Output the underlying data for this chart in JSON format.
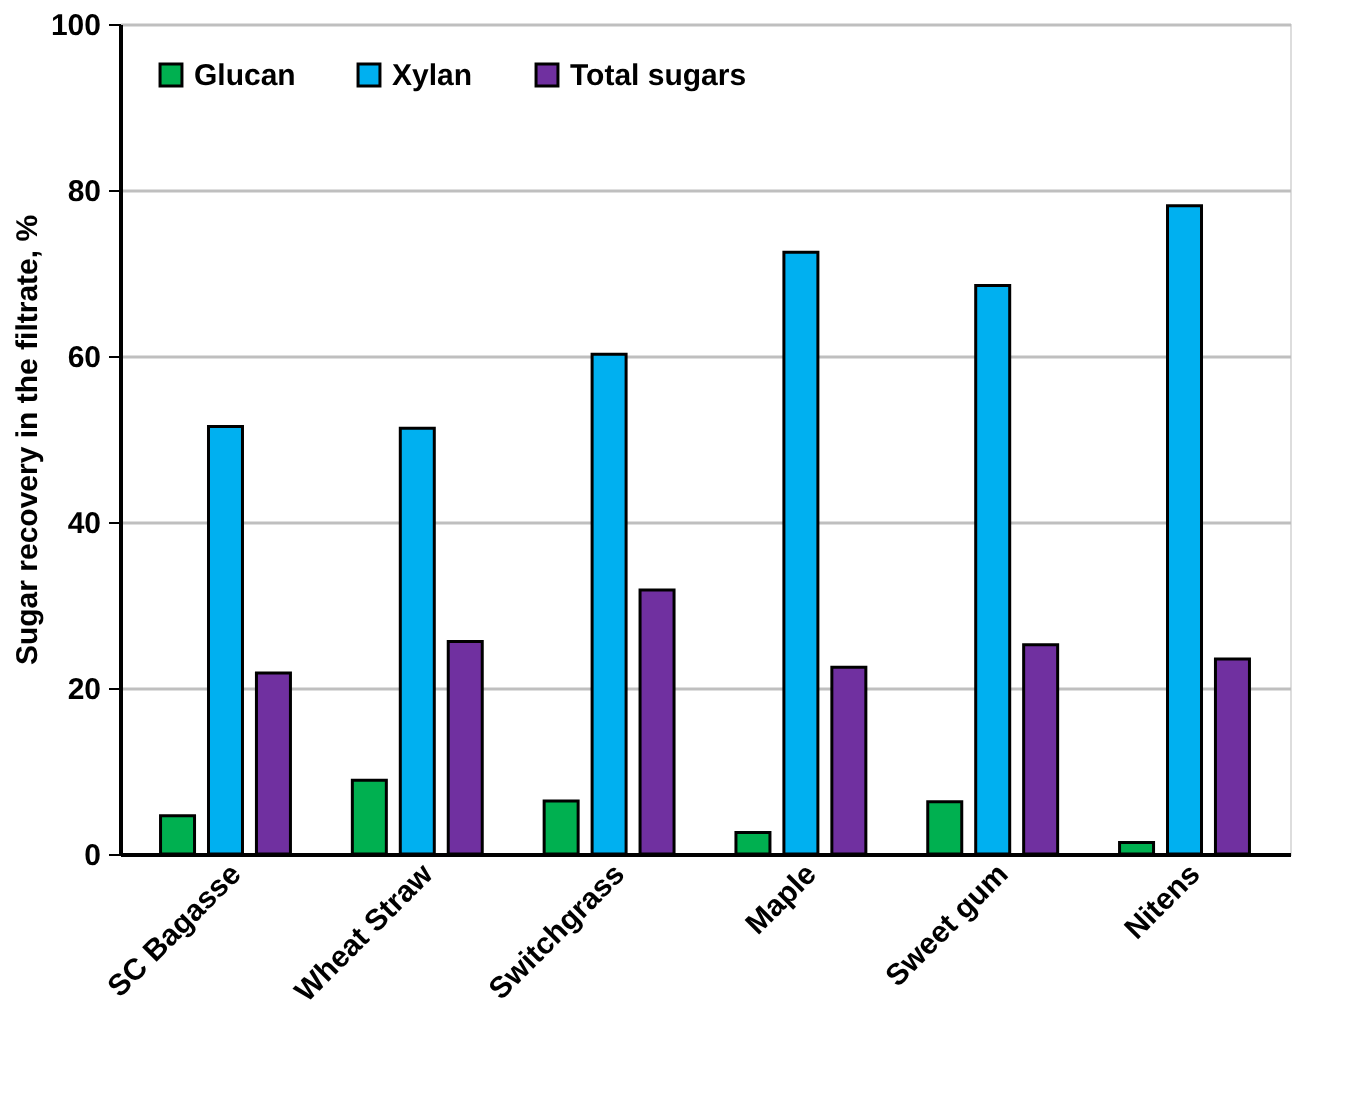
{
  "chart_data": {
    "type": "bar",
    "ylabel": "Sugar recovery in the filtrate, %",
    "categories": [
      "SC Bagasse",
      "Wheat Straw",
      "Switchgrass",
      "Maple",
      "Sweet gum",
      "Nitens"
    ],
    "series": [
      {
        "name": "Glucan",
        "color": "#00b050",
        "values": [
          4.6,
          8.9,
          6.4,
          2.6,
          6.3,
          1.4
        ]
      },
      {
        "name": "Xylan",
        "color": "#00b0f0",
        "values": [
          51.5,
          51.3,
          60.2,
          72.5,
          68.5,
          78.1
        ]
      },
      {
        "name": "Total sugars",
        "color": "#7030a0",
        "values": [
          21.8,
          25.6,
          31.8,
          22.5,
          25.2,
          23.5
        ]
      }
    ],
    "ylim": [
      0,
      100
    ],
    "yticks": [
      0,
      20,
      40,
      60,
      80,
      100
    ],
    "grid": "y",
    "legend": "top left"
  }
}
